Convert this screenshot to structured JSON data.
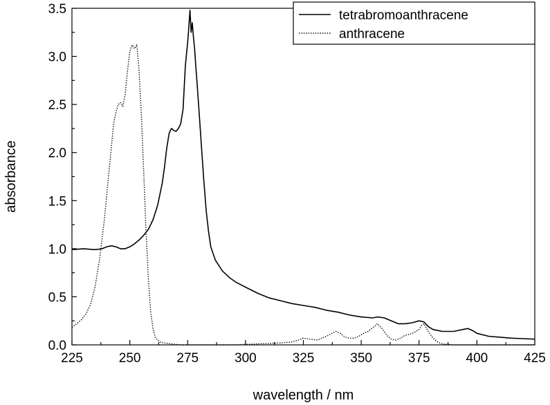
{
  "chart_data": {
    "type": "line",
    "title": "",
    "xlabel": "wavelength / nm",
    "ylabel": "absorbance",
    "xlim": [
      225,
      425
    ],
    "ylim": [
      0,
      3.5
    ],
    "x_ticks": [
      "225",
      "250",
      "275",
      "300",
      "325",
      "350",
      "375",
      "400",
      "425"
    ],
    "y_ticks": [
      "0.0",
      "0.5",
      "1.0",
      "1.5",
      "2.0",
      "2.5",
      "3.0",
      "3.5"
    ],
    "grid": false,
    "legend_position": "top-right",
    "series": [
      {
        "name": "tetrabromoanthracene",
        "style": "solid",
        "color": "#000000",
        "x": [
          225,
          230,
          235,
          238,
          240,
          242,
          244,
          246,
          248,
          250,
          252,
          254,
          256,
          258,
          260,
          262,
          264,
          265,
          266,
          267,
          268,
          269,
          270,
          271,
          272,
          273,
          274,
          275,
          275.5,
          276,
          276.5,
          277,
          277.5,
          278,
          278.5,
          279,
          280,
          281,
          282,
          283,
          284,
          285,
          287,
          290,
          293,
          296,
          300,
          305,
          310,
          315,
          320,
          325,
          330,
          335,
          340,
          345,
          350,
          355,
          357,
          360,
          363,
          366,
          369,
          372,
          375,
          377,
          379,
          381,
          385,
          390,
          394,
          396,
          398,
          400,
          405,
          410,
          415,
          420,
          425
        ],
        "y": [
          0.99,
          1.0,
          0.99,
          1.0,
          1.02,
          1.03,
          1.02,
          1.0,
          1.0,
          1.02,
          1.05,
          1.09,
          1.14,
          1.2,
          1.3,
          1.45,
          1.68,
          1.85,
          2.05,
          2.2,
          2.25,
          2.23,
          2.22,
          2.25,
          2.3,
          2.45,
          2.9,
          3.15,
          3.3,
          3.48,
          3.25,
          3.35,
          3.2,
          3.08,
          2.9,
          2.75,
          2.4,
          2.05,
          1.7,
          1.4,
          1.18,
          1.02,
          0.88,
          0.77,
          0.7,
          0.65,
          0.6,
          0.54,
          0.49,
          0.46,
          0.43,
          0.41,
          0.39,
          0.36,
          0.34,
          0.31,
          0.29,
          0.28,
          0.29,
          0.28,
          0.25,
          0.22,
          0.22,
          0.23,
          0.25,
          0.24,
          0.19,
          0.16,
          0.14,
          0.14,
          0.16,
          0.17,
          0.15,
          0.12,
          0.09,
          0.08,
          0.07,
          0.065,
          0.06
        ]
      },
      {
        "name": "anthracene",
        "style": "dotted",
        "color": "#000000",
        "x": [
          225,
          227,
          229,
          231,
          233,
          235,
          237,
          239,
          240,
          241,
          242,
          243,
          244,
          245,
          246,
          247,
          248,
          249,
          250,
          251,
          252,
          252.5,
          253,
          253.5,
          254,
          255,
          256,
          257,
          258,
          259,
          260,
          261,
          262,
          263,
          265,
          268,
          272,
          278,
          285,
          295,
          305,
          315,
          320,
          323,
          325,
          328,
          331,
          335,
          339,
          341,
          343,
          345,
          347,
          349,
          351,
          353,
          355,
          357,
          359,
          361,
          363,
          365,
          367,
          369,
          371,
          373,
          375,
          376,
          377,
          379,
          381,
          383,
          385,
          390,
          400,
          425
        ],
        "y": [
          0.18,
          0.22,
          0.26,
          0.32,
          0.42,
          0.6,
          0.9,
          1.3,
          1.55,
          1.8,
          2.05,
          2.3,
          2.42,
          2.5,
          2.52,
          2.48,
          2.6,
          2.85,
          3.05,
          3.12,
          3.08,
          3.1,
          3.12,
          3.0,
          2.85,
          2.4,
          1.8,
          1.2,
          0.7,
          0.35,
          0.17,
          0.08,
          0.05,
          0.03,
          0.02,
          0.01,
          0.0,
          0.0,
          0.0,
          0.0,
          0.01,
          0.02,
          0.03,
          0.05,
          0.07,
          0.06,
          0.05,
          0.09,
          0.14,
          0.12,
          0.08,
          0.07,
          0.07,
          0.09,
          0.12,
          0.14,
          0.18,
          0.22,
          0.17,
          0.1,
          0.06,
          0.05,
          0.07,
          0.1,
          0.11,
          0.13,
          0.16,
          0.2,
          0.22,
          0.14,
          0.07,
          0.03,
          0.01,
          0.0,
          0.0,
          0.0
        ]
      }
    ]
  }
}
